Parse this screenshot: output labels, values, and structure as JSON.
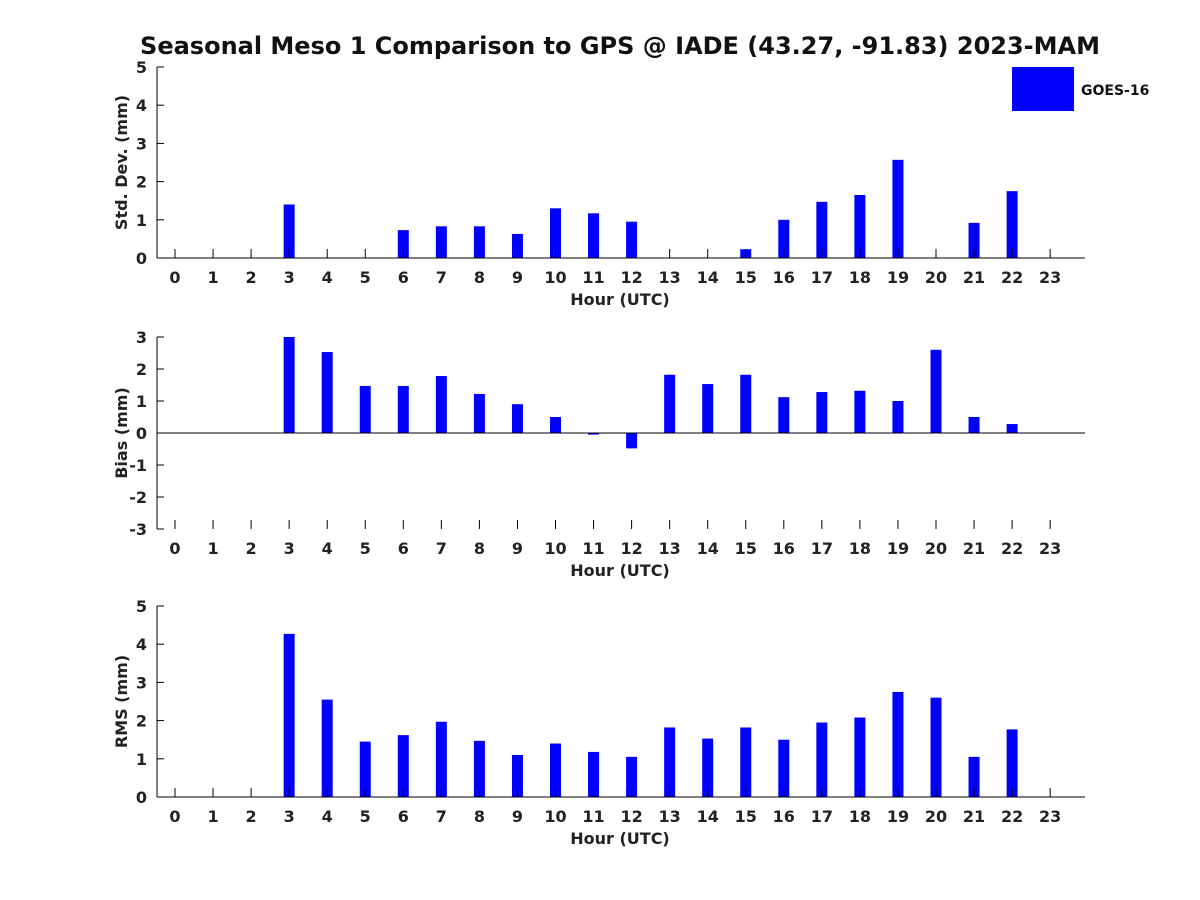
{
  "colors": {
    "bar": "#0000ff",
    "axis": "#000000"
  },
  "chart_title": "Seasonal Meso 1 Comparison to GPS @ IADE (43.27, -91.83) 2023-MAM",
  "legend": {
    "label": "GOES-16",
    "placement": "top-right"
  },
  "chart_data": [
    {
      "type": "bar",
      "title": "Seasonal Meso 1 Comparison to GPS @ IADE (43.27, -91.83) 2023-MAM",
      "xlabel": "Hour (UTC)",
      "ylabel": "Std. Dev. (mm)",
      "categories": [
        "0",
        "1",
        "2",
        "3",
        "4",
        "5",
        "6",
        "7",
        "8",
        "9",
        "10",
        "11",
        "12",
        "13",
        "14",
        "15",
        "16",
        "17",
        "18",
        "19",
        "20",
        "21",
        "22",
        "23"
      ],
      "ylim": [
        0,
        5
      ],
      "yticks": [
        "0",
        "1",
        "2",
        "3",
        "4",
        "5"
      ],
      "series": [
        {
          "name": "GOES-16",
          "values": [
            null,
            null,
            null,
            1.4,
            null,
            null,
            0.73,
            0.83,
            0.83,
            0.63,
            1.3,
            1.17,
            0.95,
            null,
            null,
            0.23,
            1.0,
            1.47,
            1.65,
            2.57,
            null,
            0.92,
            1.75,
            null
          ]
        }
      ],
      "grid": false
    },
    {
      "type": "bar",
      "title": "",
      "xlabel": "Hour (UTC)",
      "ylabel": "Bias (mm)",
      "categories": [
        "0",
        "1",
        "2",
        "3",
        "4",
        "5",
        "6",
        "7",
        "8",
        "9",
        "10",
        "11",
        "12",
        "13",
        "14",
        "15",
        "16",
        "17",
        "18",
        "19",
        "20",
        "21",
        "22",
        "23"
      ],
      "ylim": [
        -3,
        3
      ],
      "yticks": [
        "-3",
        "-2",
        "-1",
        "0",
        "1",
        "2",
        "3"
      ],
      "series": [
        {
          "name": "GOES-16",
          "values": [
            null,
            null,
            null,
            3.0,
            2.53,
            1.47,
            1.47,
            1.78,
            1.22,
            0.9,
            0.5,
            -0.05,
            -0.48,
            1.82,
            1.53,
            1.82,
            1.12,
            1.28,
            1.32,
            1.0,
            2.6,
            0.5,
            0.28,
            null
          ]
        }
      ],
      "grid": false
    },
    {
      "type": "bar",
      "title": "",
      "xlabel": "Hour (UTC)",
      "ylabel": "RMS (mm)",
      "categories": [
        "0",
        "1",
        "2",
        "3",
        "4",
        "5",
        "6",
        "7",
        "8",
        "9",
        "10",
        "11",
        "12",
        "13",
        "14",
        "15",
        "16",
        "17",
        "18",
        "19",
        "20",
        "21",
        "22",
        "23"
      ],
      "ylim": [
        0,
        5
      ],
      "yticks": [
        "0",
        "1",
        "2",
        "3",
        "4",
        "5"
      ],
      "series": [
        {
          "name": "GOES-16",
          "values": [
            null,
            null,
            null,
            4.27,
            2.55,
            1.45,
            1.62,
            1.97,
            1.47,
            1.1,
            1.4,
            1.18,
            1.05,
            1.82,
            1.53,
            1.82,
            1.5,
            1.95,
            2.08,
            2.75,
            2.6,
            1.05,
            1.77,
            null
          ]
        }
      ],
      "grid": false
    }
  ]
}
